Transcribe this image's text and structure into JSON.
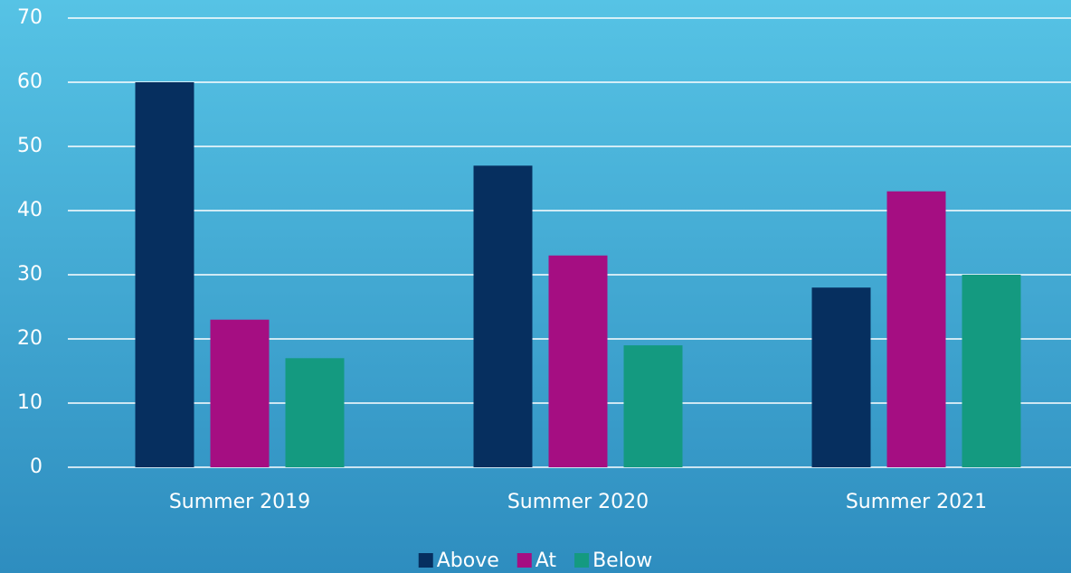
{
  "chart_data": {
    "type": "bar",
    "categories": [
      "Summer 2019",
      "Summer 2020",
      "Summer 2021"
    ],
    "series": [
      {
        "name": "Above",
        "color": "#062f5f",
        "values": [
          60,
          47,
          28
        ]
      },
      {
        "name": "At",
        "color": "#a50e82",
        "values": [
          23,
          33,
          43
        ]
      },
      {
        "name": "Below",
        "color": "#149a80",
        "values": [
          17,
          19,
          30
        ]
      }
    ],
    "ylim": [
      0,
      70
    ],
    "yticks": [
      0,
      10,
      20,
      30,
      40,
      50,
      60,
      70
    ],
    "grid": true,
    "legend": "bottom"
  }
}
